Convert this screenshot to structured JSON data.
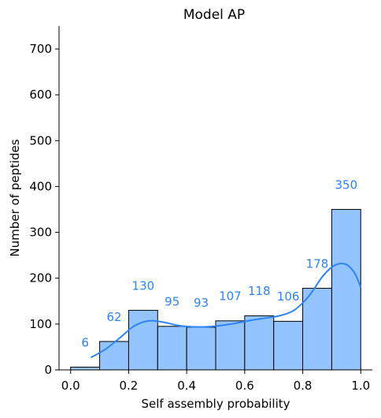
{
  "chart_data": {
    "type": "bar",
    "title": "Model AP",
    "xlabel": "Self assembly probability",
    "ylabel": "Number of peptides",
    "xlim": [
      -0.04,
      1.04
    ],
    "ylim": [
      0,
      750
    ],
    "xticks": [
      "0.0",
      "0.2",
      "0.4",
      "0.6",
      "0.8",
      "1.0"
    ],
    "xtick_values": [
      0,
      0.2,
      0.4,
      0.6,
      0.8,
      1.0
    ],
    "yticks": [
      "0",
      "100",
      "200",
      "300",
      "400",
      "500",
      "600",
      "700"
    ],
    "ytick_values": [
      0,
      100,
      200,
      300,
      400,
      500,
      600,
      700
    ],
    "bin_edges": [
      0.0,
      0.1,
      0.2,
      0.3,
      0.4,
      0.5,
      0.6,
      0.7,
      0.8,
      0.9,
      1.0
    ],
    "values": [
      6,
      62,
      130,
      95,
      93,
      107,
      118,
      106,
      178,
      350
    ],
    "data_labels": [
      "6",
      "62",
      "130",
      "95",
      "93",
      "107",
      "118",
      "106",
      "178",
      "350"
    ],
    "kde": {
      "x": [
        0.07,
        0.12,
        0.17,
        0.22,
        0.27,
        0.32,
        0.37,
        0.42,
        0.47,
        0.52,
        0.57,
        0.62,
        0.67,
        0.72,
        0.77,
        0.82,
        0.87,
        0.91,
        0.95,
        0.98,
        1.0
      ],
      "y": [
        27,
        45,
        70,
        96,
        107,
        104,
        97,
        94,
        94,
        97,
        102,
        108,
        113,
        118,
        130,
        160,
        205,
        228,
        230,
        210,
        180
      ]
    },
    "bar_color": "#94c4ff",
    "bar_edge_color": "#000000",
    "line_color": "#2c84f4",
    "label_color": "#2c84f4"
  }
}
